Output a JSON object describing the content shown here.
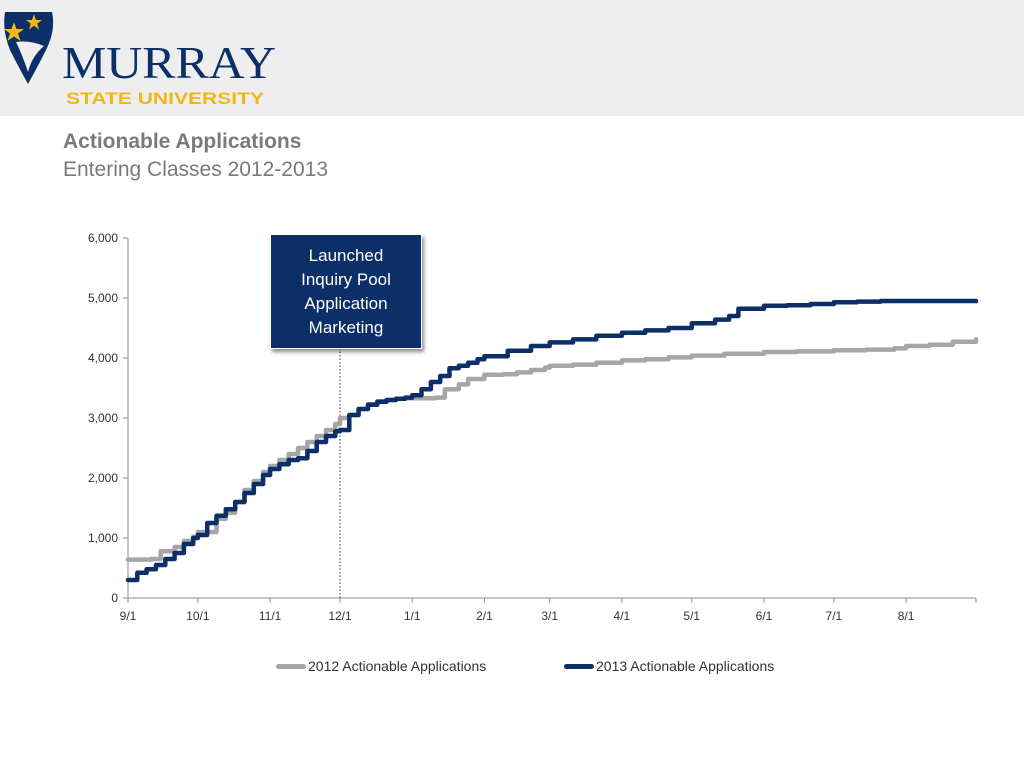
{
  "header": {
    "logo_wordmark": "MURRAY",
    "logo_tagline": "STATE UNIVERSITY"
  },
  "title": "Actionable Applications",
  "subtitle": "Entering Classes 2012-2013",
  "annotation": {
    "text": "Launched\nInquiry Pool\nApplication\nMarketing",
    "x_label": "12/1"
  },
  "colors": {
    "series_2012": "#a6a6a6",
    "series_2013": "#0b2f66",
    "title": "#7a7a7a",
    "logo_navy": "#0b2f66",
    "logo_gold": "#f2b61b"
  },
  "chart_data": {
    "type": "line",
    "title": "",
    "xlabel": "",
    "ylabel": "",
    "ylim": [
      0,
      6000
    ],
    "yticks": [
      0,
      1000,
      2000,
      3000,
      4000,
      5000,
      6000
    ],
    "ytick_labels": [
      "0",
      "1,000",
      "2,000",
      "3,000",
      "4,000",
      "5,000",
      "6,000"
    ],
    "x_ticks": [
      "9/1",
      "10/1",
      "11/1",
      "12/1",
      "1/1",
      "2/1",
      "3/1",
      "4/1",
      "5/1",
      "6/1",
      "7/1",
      "8/1"
    ],
    "x_range": [
      "9/1",
      "8/31"
    ],
    "legend_position": "bottom",
    "grid": false,
    "series": [
      {
        "name": "2012 Actionable Applications",
        "x": [
          "9/1",
          "9/11",
          "9/15",
          "9/21",
          "9/25",
          "9/29",
          "10/1",
          "10/9",
          "10/13",
          "10/17",
          "10/21",
          "10/25",
          "10/29",
          "11/1",
          "11/5",
          "11/9",
          "11/13",
          "11/17",
          "11/21",
          "11/25",
          "11/29",
          "12/1",
          "12/5",
          "12/9",
          "12/13",
          "12/17",
          "12/21",
          "12/25",
          "12/29",
          "1/1",
          "1/11",
          "1/15",
          "1/21",
          "1/25",
          "2/1",
          "2/9",
          "2/15",
          "2/21",
          "2/27",
          "3/1",
          "3/11",
          "3/21",
          "4/1",
          "4/11",
          "4/21",
          "5/1",
          "5/15",
          "6/1",
          "6/15",
          "7/1",
          "7/15",
          "7/27",
          "8/1",
          "8/11",
          "8/21",
          "8/31"
        ],
        "values": [
          640,
          650,
          780,
          850,
          950,
          1020,
          1100,
          1320,
          1420,
          1600,
          1800,
          1950,
          2100,
          2200,
          2300,
          2400,
          2500,
          2600,
          2700,
          2800,
          2900,
          3000,
          3050,
          3150,
          3230,
          3280,
          3300,
          3320,
          3330,
          3330,
          3340,
          3480,
          3560,
          3650,
          3720,
          3730,
          3760,
          3800,
          3840,
          3870,
          3890,
          3920,
          3960,
          3980,
          4010,
          4040,
          4070,
          4100,
          4110,
          4130,
          4140,
          4160,
          4200,
          4220,
          4270,
          4310
        ]
      },
      {
        "name": "2013 Actionable Applications",
        "x": [
          "9/1",
          "9/5",
          "9/9",
          "9/13",
          "9/17",
          "9/21",
          "9/25",
          "9/29",
          "10/1",
          "10/5",
          "10/9",
          "10/13",
          "10/17",
          "10/21",
          "10/25",
          "10/29",
          "11/1",
          "11/5",
          "11/9",
          "11/13",
          "11/17",
          "11/21",
          "11/25",
          "11/29",
          "12/1",
          "12/5",
          "12/9",
          "12/13",
          "12/17",
          "12/21",
          "12/25",
          "12/29",
          "1/1",
          "1/5",
          "1/9",
          "1/13",
          "1/17",
          "1/21",
          "1/25",
          "1/29",
          "2/1",
          "2/11",
          "2/21",
          "3/1",
          "3/11",
          "3/21",
          "4/1",
          "4/11",
          "4/21",
          "5/1",
          "5/11",
          "5/17",
          "5/21",
          "6/1",
          "6/11",
          "6/21",
          "7/1",
          "7/11",
          "7/21",
          "8/1",
          "8/11",
          "8/21",
          "8/31"
        ],
        "values": [
          300,
          420,
          480,
          550,
          650,
          750,
          900,
          1000,
          1050,
          1250,
          1370,
          1480,
          1600,
          1750,
          1900,
          2050,
          2150,
          2230,
          2300,
          2330,
          2450,
          2600,
          2700,
          2780,
          2800,
          3050,
          3150,
          3220,
          3270,
          3300,
          3320,
          3340,
          3380,
          3480,
          3600,
          3700,
          3830,
          3870,
          3920,
          3980,
          4030,
          4120,
          4200,
          4260,
          4310,
          4370,
          4420,
          4460,
          4500,
          4580,
          4640,
          4700,
          4820,
          4870,
          4880,
          4900,
          4930,
          4940,
          4950,
          4950,
          4950,
          4950,
          4950
        ]
      }
    ]
  }
}
